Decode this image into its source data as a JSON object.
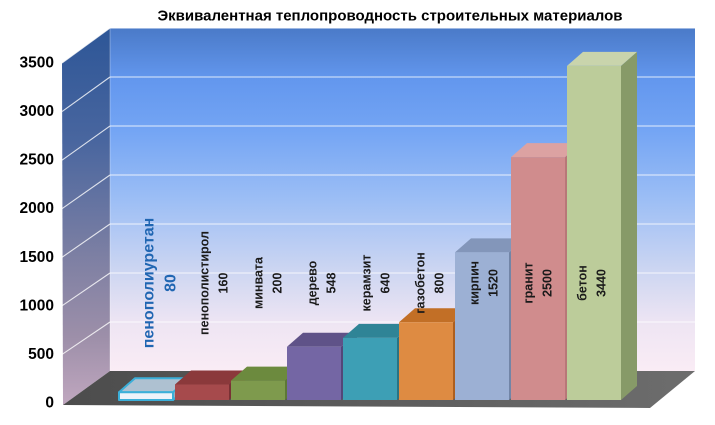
{
  "page": {
    "background": "#FFFFFF"
  },
  "chart_data": {
    "type": "bar",
    "projection": "3d",
    "title": "Эквивалентная теплопроводность строительных материалов",
    "title_color": "#000000",
    "xlabel": "",
    "ylabel": "",
    "legend": "none",
    "grid": true,
    "grid_color": "#FFFFFF",
    "tick_color": "#000000",
    "ylim": [
      0,
      3500
    ],
    "yticks": [
      0,
      500,
      1000,
      1500,
      2000,
      2500,
      3000,
      3500
    ],
    "categories": [
      "пенополиуретан",
      "пенополистирол",
      "минвата",
      "дерево",
      "керамзит",
      "газобетон",
      "кирпич",
      "гранит",
      "бетон"
    ],
    "values": [
      80,
      160,
      200,
      548,
      640,
      800,
      1520,
      2500,
      3440
    ],
    "bar_styles": [
      {
        "front": "#EDF3FA",
        "top": "#AEC1D1",
        "side": "#97AEC2",
        "stroke": "#3BAFD9",
        "label_color": "#2066B2",
        "label_size": 16
      },
      {
        "front": "#A64A4C",
        "top": "#8B393B",
        "side": "#793134",
        "stroke": "",
        "label_color": "#1A1A1A",
        "label_size": 12.5
      },
      {
        "front": "#7E9A4D",
        "top": "#6C8A3E",
        "side": "#5D7836",
        "stroke": "",
        "label_color": "#1A1A1A",
        "label_size": 12.5
      },
      {
        "front": "#7466A4",
        "top": "#5F5288",
        "side": "#534779",
        "stroke": "",
        "label_color": "#1A1A1A",
        "label_size": 12.5
      },
      {
        "front": "#3D9FB5",
        "top": "#2F8496",
        "side": "#297383",
        "stroke": "",
        "label_color": "#1A1A1A",
        "label_size": 12.5
      },
      {
        "front": "#DE8B42",
        "top": "#C26F26",
        "side": "#AD5F1F",
        "stroke": "",
        "label_color": "#1A1A1A",
        "label_size": 12.5
      },
      {
        "front": "#9CB0D4",
        "top": "#8396BA",
        "side": "#7285A7",
        "stroke": "",
        "label_color": "#1A1A1A",
        "label_size": 12.5
      },
      {
        "front": "#D08C8D",
        "top": "#DCA2A2",
        "side": "#B87778",
        "stroke": "",
        "label_color": "#1A1A1A",
        "label_size": 12.5
      },
      {
        "front": "#BCCC9A",
        "top": "#C9D4AC",
        "side": "#879A68",
        "stroke": "",
        "label_color": "#1A1A1A",
        "label_size": 12.5
      }
    ],
    "scene": {
      "back_wall_gradient": [
        "#4A7AC8",
        "#6397EE",
        "#74A5F4",
        "#9CBEF5",
        "#CBD5F2",
        "#EEE5F3",
        "#FAECF5"
      ],
      "side_wall_gradient": [
        "#2D5697",
        "#49669F",
        "#7C7FA3",
        "#9D8FA9",
        "#C0A7BF"
      ],
      "floor_gradient": [
        "#4C4C4C",
        "#6D6D6D"
      ]
    }
  }
}
